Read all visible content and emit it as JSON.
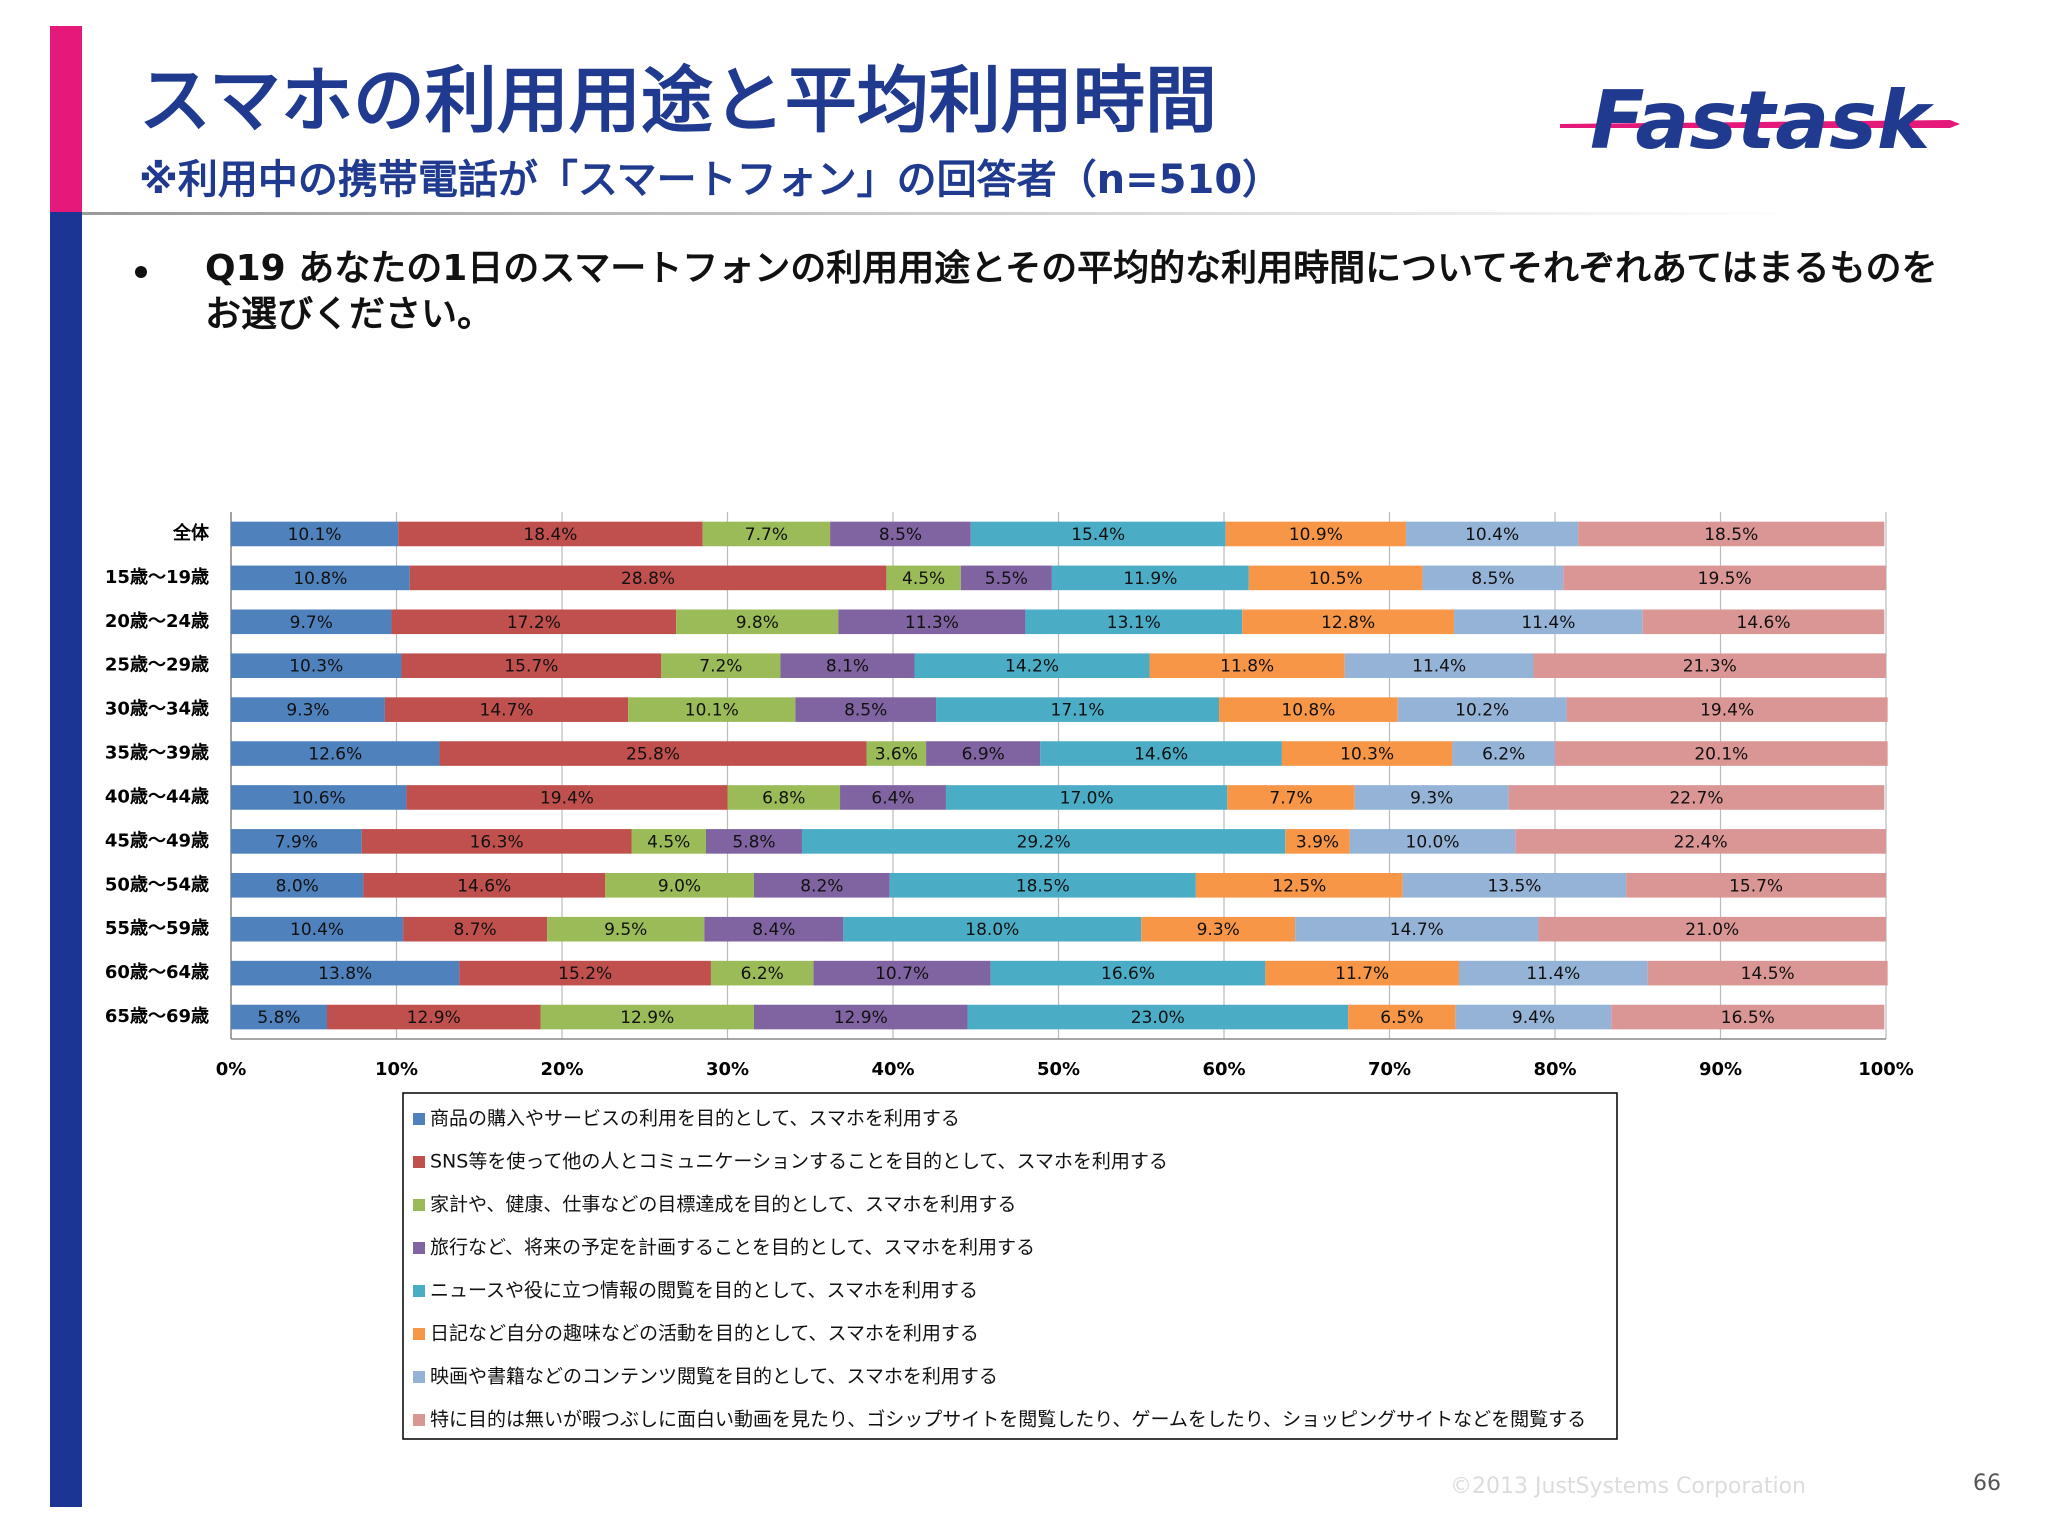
{
  "header": {
    "title": "スマホの利用用途と平均利用時間",
    "subtitle": "※利用中の携帯電話が「スマートフォン」の回答者（n=510）",
    "logo": "Fastask"
  },
  "question": "Q19 あなたの1日のスマートフォンの利用用途とその平均的な利用時間についてそれぞれあてはまるものをお選びください。",
  "footer": {
    "copyright": "©2013 JustSystems Corporation",
    "page": "66"
  },
  "chart_data": {
    "type": "stacked-bar-horizontal",
    "categories": [
      "全体",
      "15歳～19歳",
      "20歳～24歳",
      "25歳～29歳",
      "30歳～34歳",
      "35歳～39歳",
      "40歳～44歳",
      "45歳～49歳",
      "50歳～54歳",
      "55歳～59歳",
      "60歳～64歳",
      "65歳～69歳"
    ],
    "series": [
      {
        "name": "商品の購入やサービスの利用を目的として、スマホを利用する",
        "color": "#4f81bd",
        "values": [
          10.1,
          10.8,
          9.7,
          10.3,
          9.3,
          12.6,
          10.6,
          7.9,
          8.0,
          10.4,
          13.8,
          5.8
        ],
        "value_labels": [
          "10.1%",
          "10.8%",
          "9.7%",
          "10.3%",
          "9.3%",
          "12.6%",
          "10.6%",
          "7.9%",
          "8.0%",
          "10.4%",
          "13.8%",
          "5.8%"
        ]
      },
      {
        "name": "SNS等を使って他の人とコミュニケーションすることを目的として、スマホを利用する",
        "color": "#c0504d",
        "values": [
          18.4,
          28.8,
          17.2,
          15.7,
          14.7,
          25.8,
          19.4,
          16.3,
          14.6,
          8.7,
          15.2,
          12.9
        ],
        "value_labels": [
          "18.4%",
          "28.8%",
          "17.2%",
          "15.7%",
          "14.7%",
          "25.8%",
          "19.4%",
          "16.3%",
          "14.6%",
          "8.7%",
          "15.2%",
          "12.9%"
        ]
      },
      {
        "name": "家計や、健康、仕事などの目標達成を目的として、スマホを利用する",
        "color": "#9bbb59",
        "values": [
          7.7,
          4.5,
          9.8,
          7.2,
          10.1,
          3.6,
          6.8,
          4.5,
          9.0,
          9.5,
          6.2,
          12.9
        ],
        "value_labels": [
          "7.7%",
          "4.5%",
          "9.8%",
          "7.2%",
          "10.1%",
          "3.6%",
          "6.8%",
          "4.5%",
          "9.0%",
          "9.5%",
          "6.2%",
          "12.9%"
        ]
      },
      {
        "name": "旅行など、将来の予定を計画することを目的として、スマホを利用する",
        "color": "#8064a2",
        "values": [
          8.5,
          5.5,
          11.3,
          8.1,
          8.5,
          6.9,
          6.4,
          5.8,
          8.2,
          8.4,
          10.7,
          12.9
        ],
        "value_labels": [
          "8.5%",
          "5.5%",
          "11.3%",
          "8.1%",
          "8.5%",
          "6.9%",
          "6.4%",
          "5.8%",
          "8.2%",
          "8.4%",
          "10.7%",
          "12.9%"
        ]
      },
      {
        "name": "ニュースや役に立つ情報の閲覧を目的として、スマホを利用する",
        "color": "#4bacc6",
        "values": [
          15.4,
          11.9,
          13.1,
          14.2,
          17.1,
          14.6,
          17.0,
          29.2,
          18.5,
          18.0,
          16.6,
          23.0
        ],
        "value_labels": [
          "15.4%",
          "11.9%",
          "13.1%",
          "14.2%",
          "17.1%",
          "14.6%",
          "17.0%",
          "29.2%",
          "18.5%",
          "18.0%",
          "16.6%",
          "23.0%"
        ]
      },
      {
        "name": "日記など自分の趣味などの活動を目的として、スマホを利用する",
        "color": "#f79646",
        "values": [
          10.9,
          10.5,
          12.8,
          11.8,
          10.8,
          10.3,
          7.7,
          3.9,
          12.5,
          9.3,
          11.7,
          6.5
        ],
        "value_labels": [
          "10.9%",
          "10.5%",
          "12.8%",
          "11.8%",
          "10.8%",
          "10.3%",
          "7.7%",
          "3.9%",
          "12.5%",
          "9.3%",
          "11.7%",
          "6.5%"
        ]
      },
      {
        "name": "映画や書籍などのコンテンツ閲覧を目的として、スマホを利用する",
        "color": "#95b3d7",
        "values": [
          10.4,
          8.5,
          11.4,
          11.4,
          10.2,
          6.2,
          9.3,
          10.0,
          13.5,
          14.7,
          11.4,
          9.4
        ],
        "value_labels": [
          "10.4%",
          "8.5%",
          "11.4%",
          "11.4%",
          "10.2%",
          "6.2%",
          "9.3%",
          "10.0%",
          "13.5%",
          "14.7%",
          "11.4%",
          "9.4%"
        ]
      },
      {
        "name": "特に目的は無いが暇つぶしに面白い動画を見たり、ゴシップサイトを閲覧したり、ゲームをしたり、ショッピングサイトなどを閲覧する",
        "color": "#da9694",
        "values": [
          18.5,
          19.5,
          14.6,
          21.3,
          19.4,
          20.1,
          22.7,
          22.4,
          15.7,
          21.0,
          14.5,
          16.5
        ],
        "value_labels": [
          "18.5%",
          "19.5%",
          "14.6%",
          "21.3%",
          "19.4%",
          "20.1%",
          "22.7%",
          "22.4%",
          "15.7%",
          "21.0%",
          "14.5%",
          "16.5%"
        ]
      }
    ],
    "xlim": [
      0,
      100
    ],
    "xticks": [
      {
        "value": 0,
        "label": "0%"
      },
      {
        "value": 10,
        "label": "10%"
      },
      {
        "value": 20,
        "label": "20%"
      },
      {
        "value": 30,
        "label": "30%"
      },
      {
        "value": 40,
        "label": "40%"
      },
      {
        "value": 50,
        "label": "50%"
      },
      {
        "value": 60,
        "label": "60%"
      },
      {
        "value": 70,
        "label": "70%"
      },
      {
        "value": 80,
        "label": "80%"
      },
      {
        "value": 90,
        "label": "90%"
      },
      {
        "value": 100,
        "label": "100%"
      }
    ],
    "grid": true,
    "legend": "bottom"
  }
}
